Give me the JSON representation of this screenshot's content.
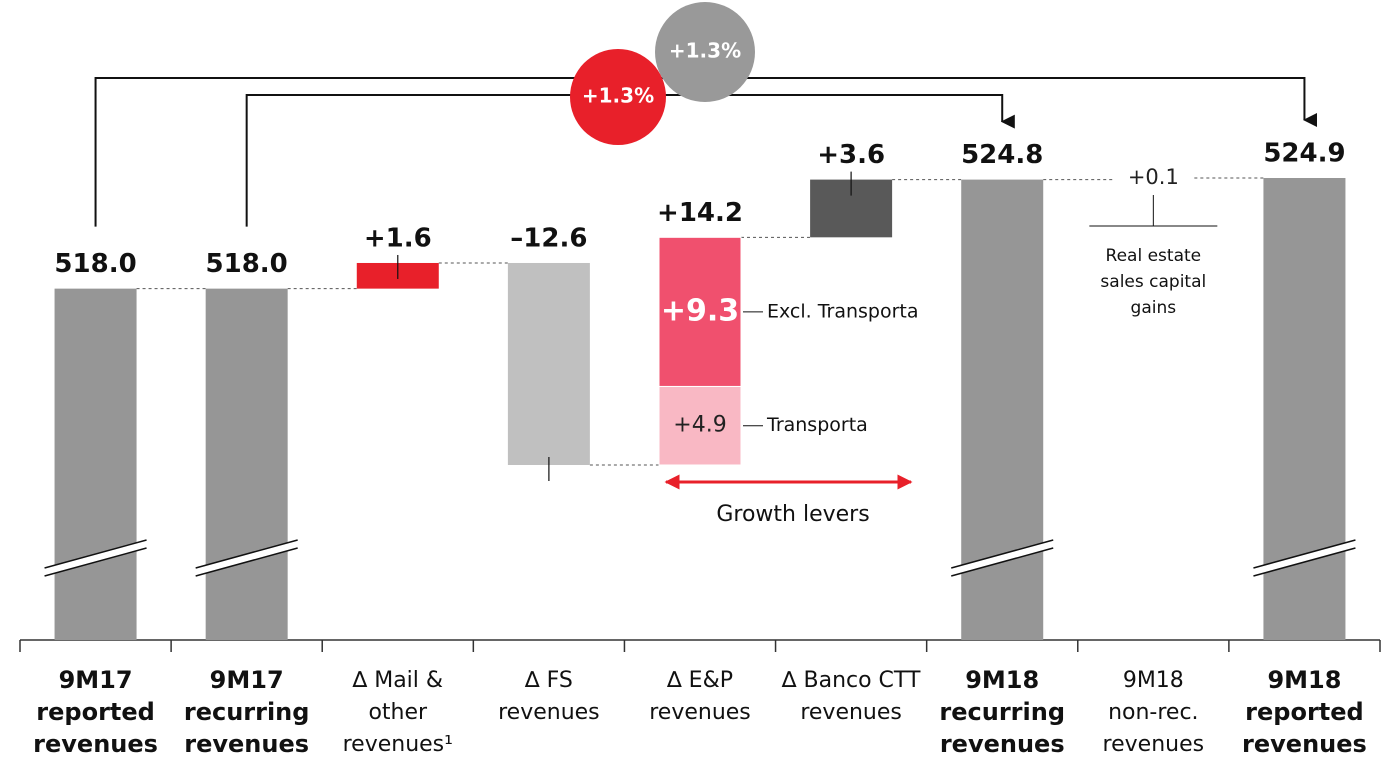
{
  "chart_data": {
    "type": "waterfall",
    "categories": [
      [
        "9M17",
        "reported",
        "revenues"
      ],
      [
        "9M17",
        "recurring",
        "revenues"
      ],
      [
        "∆ Mail &",
        "other",
        "revenues¹"
      ],
      [
        "∆ FS",
        "revenues"
      ],
      [
        "∆ E&P",
        "revenues"
      ],
      [
        "∆ Banco CTT",
        "revenues"
      ],
      [
        "9M18",
        "recurring",
        "revenues"
      ],
      [
        "9M18",
        "non-rec.",
        "revenues"
      ],
      [
        "9M18",
        "reported",
        "revenues"
      ]
    ],
    "kinds": [
      "total",
      "total",
      "delta",
      "delta",
      "delta",
      "delta",
      "total",
      "delta",
      "total"
    ],
    "values": [
      518.0,
      518.0,
      1.6,
      -12.6,
      14.2,
      3.6,
      524.8,
      0.1,
      524.9
    ],
    "value_labels": [
      "518.0",
      "518.0",
      "+1.6",
      "–12.6",
      "+14.2",
      "+3.6",
      "524.8",
      "+0.1",
      "524.9"
    ],
    "colors": [
      "#969696",
      "#969696",
      "#e8202a",
      "#c0c0c0",
      "#f0506e",
      "#595959",
      "#969696",
      "#000000",
      "#969696"
    ],
    "breakdown": {
      "names": [
        "Excl. Transporta",
        "Transporta"
      ],
      "values": [
        9.3,
        4.9
      ],
      "value_labels": [
        "+9.3",
        "+4.9"
      ],
      "colors": [
        "#f0506e",
        "#f9b8c4"
      ]
    },
    "growth": [
      {
        "label": "+1.3%",
        "color": "#999999"
      },
      {
        "label": "+1.3%",
        "color": "#e8202a"
      }
    ],
    "annotations": [
      "Growth levers",
      "Real estate sales capital gains"
    ]
  }
}
